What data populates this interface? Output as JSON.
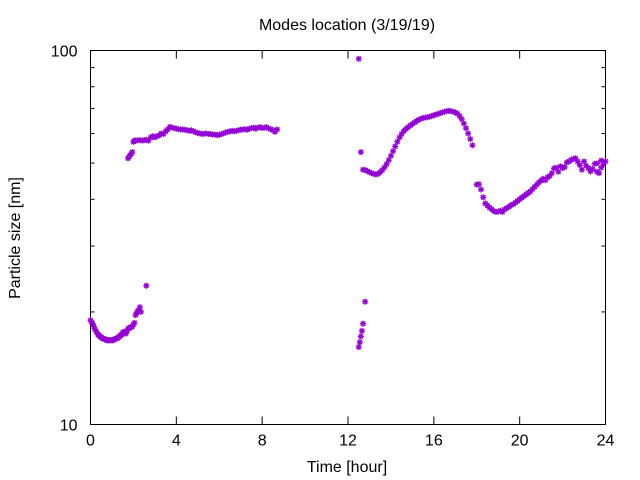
{
  "chart_data": {
    "type": "scatter",
    "title": "Modes location (3/19/19)",
    "xlabel": "Time [hour]",
    "ylabel": "Particle size [nm]",
    "xlim": [
      0,
      24
    ],
    "ylim": [
      10,
      100
    ],
    "yscale": "log",
    "grid": false,
    "legend": "none",
    "marker_color": "#9400d3",
    "xticks": [
      0,
      4,
      8,
      12,
      16,
      20,
      24
    ],
    "xtick_labels": [
      "0",
      "4",
      "8",
      "12",
      "16",
      "20",
      "24"
    ],
    "yticks": [
      10,
      100
    ],
    "ytick_labels": [
      "10",
      "100"
    ],
    "yminor_ticks": [
      20,
      30,
      40,
      50,
      60,
      70,
      80,
      90
    ],
    "points": [
      [
        0.0,
        19.0
      ],
      [
        0.05,
        18.8
      ],
      [
        0.1,
        18.6
      ],
      [
        0.15,
        18.3
      ],
      [
        0.2,
        18.0
      ],
      [
        0.25,
        17.8
      ],
      [
        0.3,
        17.6
      ],
      [
        0.35,
        17.4
      ],
      [
        0.4,
        17.3
      ],
      [
        0.45,
        17.2
      ],
      [
        0.5,
        17.1
      ],
      [
        0.55,
        17.0
      ],
      [
        0.6,
        17.0
      ],
      [
        0.65,
        16.9
      ],
      [
        0.7,
        16.9
      ],
      [
        0.75,
        16.8
      ],
      [
        0.8,
        16.8
      ],
      [
        0.85,
        16.8
      ],
      [
        0.9,
        16.8
      ],
      [
        0.95,
        16.8
      ],
      [
        1.0,
        16.8
      ],
      [
        1.05,
        16.8
      ],
      [
        1.1,
        16.9
      ],
      [
        1.15,
        16.9
      ],
      [
        1.2,
        17.0
      ],
      [
        1.25,
        17.0
      ],
      [
        1.3,
        17.1
      ],
      [
        1.35,
        17.2
      ],
      [
        1.4,
        17.3
      ],
      [
        1.45,
        17.4
      ],
      [
        1.5,
        17.6
      ],
      [
        1.55,
        17.7
      ],
      [
        1.6,
        17.6
      ],
      [
        1.65,
        17.5
      ],
      [
        1.7,
        17.8
      ],
      [
        1.75,
        18.0
      ],
      [
        1.8,
        18.1
      ],
      [
        1.85,
        18.2
      ],
      [
        1.9,
        18.2
      ],
      [
        1.95,
        18.3
      ],
      [
        2.0,
        18.5
      ],
      [
        2.05,
        18.7
      ],
      [
        2.1,
        19.6
      ],
      [
        2.15,
        19.9
      ],
      [
        2.2,
        20.1
      ],
      [
        2.25,
        20.2
      ],
      [
        2.3,
        20.6
      ],
      [
        2.35,
        20.0
      ],
      [
        2.6,
        23.5
      ],
      [
        1.75,
        51.5
      ],
      [
        1.8,
        52.0
      ],
      [
        1.85,
        52.5
      ],
      [
        1.9,
        53.0
      ],
      [
        1.95,
        53.5
      ],
      [
        2.0,
        57.0
      ],
      [
        2.05,
        57.3
      ],
      [
        2.1,
        57.5
      ],
      [
        2.2,
        57.5
      ],
      [
        2.3,
        57.6
      ],
      [
        2.4,
        57.4
      ],
      [
        2.5,
        57.6
      ],
      [
        2.6,
        57.7
      ],
      [
        2.7,
        57.4
      ],
      [
        2.8,
        58.5
      ],
      [
        2.9,
        59.0
      ],
      [
        3.0,
        58.6
      ],
      [
        3.1,
        59.0
      ],
      [
        3.2,
        59.3
      ],
      [
        3.3,
        60.0
      ],
      [
        3.4,
        59.8
      ],
      [
        3.5,
        60.8
      ],
      [
        3.6,
        61.5
      ],
      [
        3.7,
        62.5
      ],
      [
        3.8,
        62.2
      ],
      [
        3.9,
        62.0
      ],
      [
        4.0,
        61.8
      ],
      [
        4.1,
        61.6
      ],
      [
        4.2,
        61.5
      ],
      [
        4.3,
        61.5
      ],
      [
        4.4,
        61.4
      ],
      [
        4.5,
        61.2
      ],
      [
        4.6,
        61.0
      ],
      [
        4.7,
        61.2
      ],
      [
        4.8,
        60.8
      ],
      [
        4.9,
        60.4
      ],
      [
        5.0,
        60.2
      ],
      [
        5.1,
        60.0
      ],
      [
        5.2,
        59.8
      ],
      [
        5.3,
        59.9
      ],
      [
        5.4,
        60.0
      ],
      [
        5.5,
        59.8
      ],
      [
        5.6,
        59.8
      ],
      [
        5.7,
        59.6
      ],
      [
        5.8,
        59.6
      ],
      [
        5.9,
        59.4
      ],
      [
        6.0,
        59.5
      ],
      [
        6.1,
        59.8
      ],
      [
        6.2,
        60.0
      ],
      [
        6.3,
        60.4
      ],
      [
        6.4,
        60.6
      ],
      [
        6.5,
        60.8
      ],
      [
        6.6,
        61.0
      ],
      [
        6.7,
        60.8
      ],
      [
        6.8,
        61.0
      ],
      [
        6.9,
        61.2
      ],
      [
        7.0,
        61.4
      ],
      [
        7.1,
        61.5
      ],
      [
        7.2,
        61.6
      ],
      [
        7.3,
        61.4
      ],
      [
        7.4,
        61.8
      ],
      [
        7.5,
        62.0
      ],
      [
        7.6,
        62.2
      ],
      [
        7.7,
        61.8
      ],
      [
        7.8,
        62.2
      ],
      [
        7.9,
        62.4
      ],
      [
        8.0,
        62.0
      ],
      [
        8.1,
        62.2
      ],
      [
        8.2,
        62.4
      ],
      [
        8.3,
        61.9
      ],
      [
        8.4,
        61.6
      ],
      [
        8.5,
        61.2
      ],
      [
        8.6,
        60.6
      ],
      [
        8.7,
        61.5
      ],
      [
        12.5,
        16.1
      ],
      [
        12.55,
        16.6
      ],
      [
        12.6,
        17.2
      ],
      [
        12.65,
        17.8
      ],
      [
        12.7,
        18.6
      ],
      [
        12.8,
        21.3
      ],
      [
        12.5,
        95.0
      ],
      [
        12.6,
        53.5
      ],
      [
        12.7,
        48.0
      ],
      [
        12.8,
        47.9
      ],
      [
        12.9,
        47.6
      ],
      [
        13.0,
        47.3
      ],
      [
        13.1,
        47.0
      ],
      [
        13.2,
        46.8
      ],
      [
        13.3,
        46.6
      ],
      [
        13.4,
        46.8
      ],
      [
        13.5,
        47.3
      ],
      [
        13.6,
        47.9
      ],
      [
        13.7,
        48.7
      ],
      [
        13.8,
        49.7
      ],
      [
        13.9,
        50.9
      ],
      [
        14.0,
        52.3
      ],
      [
        14.1,
        53.8
      ],
      [
        14.2,
        55.4
      ],
      [
        14.3,
        57.0
      ],
      [
        14.4,
        58.5
      ],
      [
        14.5,
        59.8
      ],
      [
        14.6,
        60.9
      ],
      [
        14.7,
        61.7
      ],
      [
        14.8,
        62.4
      ],
      [
        14.9,
        63.0
      ],
      [
        15.0,
        63.6
      ],
      [
        15.1,
        64.2
      ],
      [
        15.2,
        64.8
      ],
      [
        15.3,
        65.3
      ],
      [
        15.4,
        65.7
      ],
      [
        15.5,
        66.0
      ],
      [
        15.6,
        66.2
      ],
      [
        15.7,
        66.3
      ],
      [
        15.8,
        66.5
      ],
      [
        15.9,
        66.8
      ],
      [
        16.0,
        67.1
      ],
      [
        16.1,
        67.4
      ],
      [
        16.2,
        67.7
      ],
      [
        16.3,
        68.0
      ],
      [
        16.4,
        68.3
      ],
      [
        16.5,
        68.6
      ],
      [
        16.6,
        68.8
      ],
      [
        16.7,
        69.0
      ],
      [
        16.8,
        68.8
      ],
      [
        16.9,
        68.6
      ],
      [
        17.0,
        68.3
      ],
      [
        17.1,
        67.8
      ],
      [
        17.2,
        66.8
      ],
      [
        17.3,
        65.5
      ],
      [
        17.4,
        63.8
      ],
      [
        17.5,
        62.0
      ],
      [
        17.6,
        60.0
      ],
      [
        17.7,
        58.0
      ],
      [
        17.8,
        55.8
      ],
      [
        18.0,
        43.8
      ],
      [
        18.1,
        43.9
      ],
      [
        18.2,
        42.5
      ],
      [
        18.3,
        40.5
      ],
      [
        18.4,
        39.0
      ],
      [
        18.5,
        38.5
      ],
      [
        18.6,
        38.0
      ],
      [
        18.7,
        37.6
      ],
      [
        18.8,
        37.2
      ],
      [
        18.9,
        37.0
      ],
      [
        19.0,
        37.1
      ],
      [
        19.1,
        37.3
      ],
      [
        19.2,
        37.0
      ],
      [
        19.3,
        37.6
      ],
      [
        19.4,
        37.9
      ],
      [
        19.5,
        38.2
      ],
      [
        19.6,
        38.6
      ],
      [
        19.7,
        38.8
      ],
      [
        19.8,
        39.2
      ],
      [
        19.9,
        39.6
      ],
      [
        20.0,
        40.0
      ],
      [
        20.1,
        40.4
      ],
      [
        20.2,
        40.8
      ],
      [
        20.3,
        41.2
      ],
      [
        20.4,
        41.6
      ],
      [
        20.5,
        42.0
      ],
      [
        20.6,
        42.6
      ],
      [
        20.7,
        43.2
      ],
      [
        20.8,
        43.8
      ],
      [
        20.9,
        44.4
      ],
      [
        21.0,
        44.9
      ],
      [
        21.1,
        45.4
      ],
      [
        21.2,
        45.0
      ],
      [
        21.3,
        45.8
      ],
      [
        21.4,
        46.2
      ],
      [
        21.5,
        47.0
      ],
      [
        21.6,
        48.4
      ],
      [
        21.7,
        48.6
      ],
      [
        21.8,
        47.4
      ],
      [
        21.9,
        49.0
      ],
      [
        22.0,
        48.5
      ],
      [
        22.1,
        48.8
      ],
      [
        22.2,
        50.2
      ],
      [
        22.3,
        50.5
      ],
      [
        22.4,
        51.0
      ],
      [
        22.5,
        51.3
      ],
      [
        22.6,
        51.5
      ],
      [
        22.7,
        50.5
      ],
      [
        22.8,
        49.4
      ],
      [
        22.9,
        48.0
      ],
      [
        23.0,
        50.5
      ],
      [
        23.1,
        49.2
      ],
      [
        23.2,
        48.5
      ],
      [
        23.3,
        47.5
      ],
      [
        23.4,
        48.2
      ],
      [
        23.5,
        49.8
      ],
      [
        23.6,
        47.4
      ],
      [
        23.7,
        47.0
      ],
      [
        23.8,
        48.6
      ],
      [
        23.9,
        49.6
      ],
      [
        24.0,
        50.5
      ],
      [
        23.8,
        50.8
      ],
      [
        23.6,
        49.9
      ]
    ]
  }
}
